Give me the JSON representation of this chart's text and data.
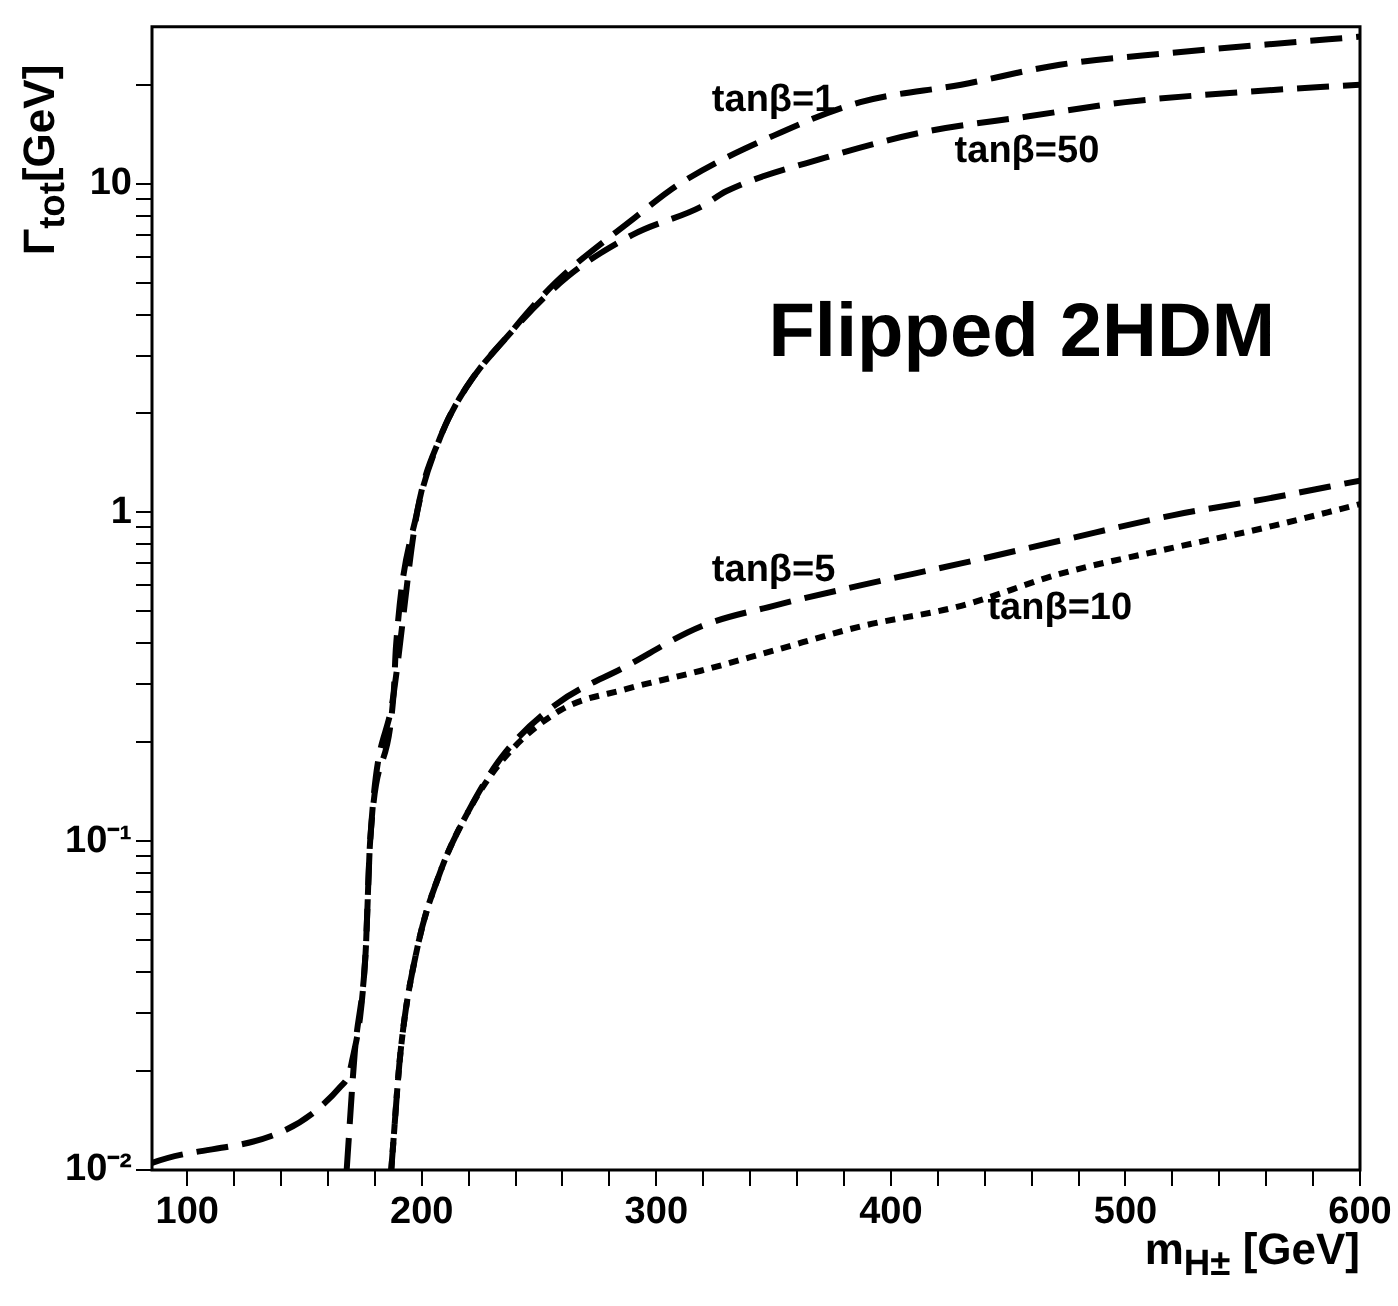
{
  "chart_data": {
    "type": "line",
    "xlabel": "m$_{H±}$ [GeV]",
    "ylabel": "Γ$_{tot}$[GeV]",
    "annotations": [
      "Flipped 2HDM"
    ],
    "xlim": [
      85,
      600
    ],
    "ylim": [
      0.01,
      30
    ],
    "log": "y",
    "marker": "none",
    "xticks": [
      100,
      {
        "value": 120,
        "label": null
      },
      {
        "value": 140,
        "label": null
      },
      {
        "value": 160,
        "label": null
      },
      {
        "value": 180,
        "label": null
      },
      200,
      {
        "value": 220,
        "label": null
      },
      {
        "value": 240,
        "label": null
      },
      {
        "value": 260,
        "label": null
      },
      {
        "value": 280,
        "label": null
      },
      300,
      {
        "value": 320,
        "label": null
      },
      {
        "value": 340,
        "label": null
      },
      {
        "value": 360,
        "label": null
      },
      {
        "value": 380,
        "label": null
      },
      400,
      {
        "value": 420,
        "label": null
      },
      {
        "value": 440,
        "label": null
      },
      {
        "value": 460,
        "label": null
      },
      {
        "value": 480,
        "label": null
      },
      500,
      {
        "value": 520,
        "label": null
      },
      {
        "value": 540,
        "label": null
      },
      {
        "value": 560,
        "label": null
      },
      {
        "value": 580,
        "label": null
      },
      600
    ],
    "yticks": [
      {
        "value": 0.01,
        "label": "10⁻²"
      },
      {
        "value": 0.02,
        "label": null
      },
      {
        "value": 0.03,
        "label": null
      },
      {
        "value": 0.04,
        "label": null
      },
      {
        "value": 0.05,
        "label": null
      },
      {
        "value": 0.06,
        "label": null
      },
      {
        "value": 0.07,
        "label": null
      },
      {
        "value": 0.08,
        "label": null
      },
      {
        "value": 0.09,
        "label": null
      },
      {
        "value": 0.1,
        "label": "10⁻¹"
      },
      {
        "value": 0.2,
        "label": null
      },
      {
        "value": 0.3,
        "label": null
      },
      {
        "value": 0.4,
        "label": null
      },
      {
        "value": 0.5,
        "label": null
      },
      {
        "value": 0.6,
        "label": null
      },
      {
        "value": 0.7,
        "label": null
      },
      {
        "value": 0.8,
        "label": null
      },
      {
        "value": 0.9,
        "label": null
      },
      1,
      {
        "value": 2,
        "label": null
      },
      {
        "value": 3,
        "label": null
      },
      {
        "value": 4,
        "label": null
      },
      {
        "value": 5,
        "label": null
      },
      {
        "value": 6,
        "label": null
      },
      {
        "value": 7,
        "label": null
      },
      {
        "value": 8,
        "label": null
      },
      {
        "value": 9,
        "label": null
      },
      10,
      {
        "value": 20,
        "label": null
      }
    ],
    "series": [
      {
        "name": "tanβ=1",
        "color": "#000000",
        "line_style": "dashed",
        "x": [
          168,
          171.5,
          176,
          178,
          188,
          189,
          198,
          208,
          219,
          236,
          257,
          291,
          310,
          350,
          387,
          430,
          472,
          520,
          560,
          600
        ],
        "values": [
          0.01,
          0.023,
          0.045,
          0.1,
          0.28,
          0.39,
          1,
          1.7,
          2.4,
          3.4,
          5,
          7.9,
          10,
          14,
          17.7,
          20,
          23,
          25,
          26.5,
          28
        ]
      },
      {
        "name": "tanβ=50",
        "color": "#000000",
        "line_style": "dashed",
        "x": [
          85,
          165.6,
          170,
          176,
          178,
          188,
          198,
          208,
          219,
          236,
          262,
          290,
          319,
          330,
          372,
          415,
          458,
          500,
          550,
          600
        ],
        "values": [
          0.0105,
          0.018,
          0.021,
          0.045,
          0.1,
          0.28,
          1,
          1.7,
          2.4,
          3.4,
          5.2,
          7,
          8.5,
          9.5,
          12,
          14.4,
          16,
          17.7,
          19,
          20
        ]
      },
      {
        "name": "tanβ=5",
        "color": "#000000",
        "line_style": "dashed",
        "x": [
          187,
          191,
          198,
          208,
          219,
          234,
          257,
          287,
          319,
          350,
          387,
          430,
          472,
          520,
          560,
          600
        ],
        "values": [
          0.01,
          0.023,
          0.047,
          0.081,
          0.12,
          0.18,
          0.26,
          0.34,
          0.45,
          0.52,
          0.6,
          0.7,
          0.82,
          0.98,
          1.1,
          1.25
        ]
      },
      {
        "name": "tanβ=10",
        "color": "#000000",
        "line_style": "dotted",
        "x": [
          187,
          191,
          198,
          208,
          219,
          234,
          259,
          287,
          319,
          350,
          387,
          430,
          472,
          520,
          560,
          600
        ],
        "values": [
          0.01,
          0.023,
          0.047,
          0.081,
          0.12,
          0.175,
          0.25,
          0.29,
          0.33,
          0.38,
          0.45,
          0.52,
          0.65,
          0.78,
          0.9,
          1.06
        ]
      }
    ]
  }
}
